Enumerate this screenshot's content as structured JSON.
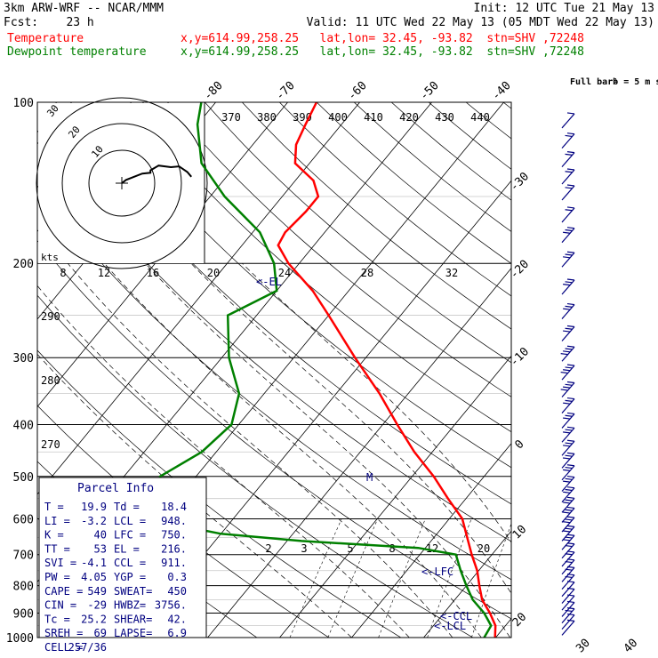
{
  "header": {
    "model": "3km ARW-WRF -- NCAR/MMM",
    "init": "Init: 12 UTC Tue 21 May 13",
    "fcst": "Fcst:    23 h",
    "valid": "Valid: 11 UTC Wed 22 May 13 (05 MDT Wed 22 May 13)",
    "temp_label": "Temperature",
    "temp_info": "x,y=614.99,258.25   lat,lon= 32.45, -93.82  stn=SHV ,72248",
    "dew_label": "Dewpoint temperature",
    "dew_info": "x,y=614.99,258.25   lat,lon= 32.45, -93.82  stn=SHV ,72248"
  },
  "colors": {
    "temperature": "#ff0000",
    "dewpoint": "#008000",
    "info": "#000080",
    "grid": "#000000"
  },
  "chart_data": {
    "type": "line",
    "title": "Skew-T log-P sounding",
    "pressure_levels": [
      100,
      200,
      300,
      400,
      500,
      600,
      700,
      800,
      900,
      1000
    ],
    "temperature_axis_ticks": [
      -80,
      -70,
      -60,
      -50,
      -40,
      -30,
      -20,
      -10,
      0,
      10,
      20,
      30,
      40
    ],
    "theta_ticks": [
      370,
      380,
      390,
      400,
      410,
      420,
      430,
      440
    ],
    "theta_e_ticks": [
      290,
      280,
      270
    ],
    "mixing_ratio_ticks_upper": [
      8,
      12,
      16,
      20,
      24,
      28,
      32
    ],
    "mixing_ratio_ticks_lower": [
      2,
      3,
      5,
      8,
      12,
      20
    ],
    "wind_barb_label": "Full barb = 5 m s",
    "wind_barb_exponent": "-1",
    "hodograph_label": "kts",
    "hodograph_rings": [
      "10",
      "20",
      "30"
    ],
    "series": [
      {
        "name": "Temperature",
        "points": [
          {
            "p": 1000,
            "t": 19.9
          },
          {
            "p": 950,
            "t": 18.6
          },
          {
            "p": 900,
            "t": 16.4
          },
          {
            "p": 850,
            "t": 13.8
          },
          {
            "p": 800,
            "t": 11.8
          },
          {
            "p": 750,
            "t": 9.8
          },
          {
            "p": 700,
            "t": 7.2
          },
          {
            "p": 650,
            "t": 4.6
          },
          {
            "p": 600,
            "t": 1.8
          },
          {
            "p": 550,
            "t": -2.5
          },
          {
            "p": 500,
            "t": -7.0
          },
          {
            "p": 450,
            "t": -12.5
          },
          {
            "p": 400,
            "t": -18.0
          },
          {
            "p": 350,
            "t": -24.0
          },
          {
            "p": 300,
            "t": -31.5
          },
          {
            "p": 250,
            "t": -40.0
          },
          {
            "p": 225,
            "t": -45.0
          },
          {
            "p": 200,
            "t": -51.5
          },
          {
            "p": 185,
            "t": -55.0
          },
          {
            "p": 175,
            "t": -55.5
          },
          {
            "p": 160,
            "t": -55.0
          },
          {
            "p": 150,
            "t": -55.0
          },
          {
            "p": 140,
            "t": -57.5
          },
          {
            "p": 130,
            "t": -62.0
          },
          {
            "p": 120,
            "t": -64.0
          },
          {
            "p": 110,
            "t": -65.0
          },
          {
            "p": 100,
            "t": -66.0
          }
        ]
      },
      {
        "name": "Dewpoint temperature",
        "points": [
          {
            "p": 1000,
            "t": 18.4
          },
          {
            "p": 950,
            "t": 18.0
          },
          {
            "p": 900,
            "t": 15.6
          },
          {
            "p": 850,
            "t": 12.5
          },
          {
            "p": 800,
            "t": 10.0
          },
          {
            "p": 750,
            "t": 7.5
          },
          {
            "p": 700,
            "t": 5.0
          },
          {
            "p": 680,
            "t": -1.0
          },
          {
            "p": 660,
            "t": -18.0
          },
          {
            "p": 640,
            "t": -30.0
          },
          {
            "p": 620,
            "t": -36.0
          },
          {
            "p": 600,
            "t": -39.5
          },
          {
            "p": 560,
            "t": -42.0
          },
          {
            "p": 500,
            "t": -45.0
          },
          {
            "p": 450,
            "t": -42.0
          },
          {
            "p": 400,
            "t": -41.0
          },
          {
            "p": 350,
            "t": -43.5
          },
          {
            "p": 300,
            "t": -49.0
          },
          {
            "p": 250,
            "t": -54.0
          },
          {
            "p": 225,
            "t": -50.0
          },
          {
            "p": 200,
            "t": -53.5
          },
          {
            "p": 175,
            "t": -59.0
          },
          {
            "p": 150,
            "t": -68.0
          },
          {
            "p": 130,
            "t": -75.0
          },
          {
            "p": 110,
            "t": -80.0
          },
          {
            "p": 100,
            "t": -82.0
          }
        ]
      }
    ],
    "level_markers": [
      {
        "label": "<-EL",
        "p": 216
      },
      {
        "label": "M",
        "p": 500
      },
      {
        "label": "<-LFC",
        "p": 750
      },
      {
        "label": "<-CCL",
        "p": 911
      },
      {
        "label": "<-LCL",
        "p": 948
      }
    ],
    "hodograph_trace": [
      [
        0,
        0
      ],
      [
        2,
        -4
      ],
      [
        6,
        -8
      ],
      [
        10,
        -12
      ],
      [
        14,
        -13
      ],
      [
        14,
        -16
      ],
      [
        18,
        -22
      ],
      [
        24,
        -20
      ],
      [
        28,
        -21
      ],
      [
        32,
        -14
      ],
      [
        34,
        -8
      ]
    ],
    "winds": [
      {
        "p": 975,
        "speed": 8,
        "dir": 170
      },
      {
        "p": 950,
        "speed": 10,
        "dir": 180
      },
      {
        "p": 925,
        "speed": 14,
        "dir": 190
      },
      {
        "p": 900,
        "speed": 12,
        "dir": 200
      },
      {
        "p": 875,
        "speed": 10,
        "dir": 210
      },
      {
        "p": 850,
        "speed": 10,
        "dir": 220
      },
      {
        "p": 825,
        "speed": 12,
        "dir": 230
      },
      {
        "p": 800,
        "speed": 14,
        "dir": 240
      },
      {
        "p": 775,
        "speed": 16,
        "dir": 245
      },
      {
        "p": 750,
        "speed": 18,
        "dir": 250
      },
      {
        "p": 725,
        "speed": 20,
        "dir": 250
      },
      {
        "p": 700,
        "speed": 22,
        "dir": 250
      },
      {
        "p": 675,
        "speed": 24,
        "dir": 255
      },
      {
        "p": 650,
        "speed": 26,
        "dir": 255
      },
      {
        "p": 625,
        "speed": 28,
        "dir": 255
      },
      {
        "p": 600,
        "speed": 28,
        "dir": 255
      },
      {
        "p": 575,
        "speed": 30,
        "dir": 255
      },
      {
        "p": 550,
        "speed": 30,
        "dir": 255
      },
      {
        "p": 525,
        "speed": 30,
        "dir": 255
      },
      {
        "p": 500,
        "speed": 30,
        "dir": 255
      },
      {
        "p": 475,
        "speed": 30,
        "dir": 255
      },
      {
        "p": 450,
        "speed": 30,
        "dir": 255
      },
      {
        "p": 425,
        "speed": 32,
        "dir": 255
      },
      {
        "p": 400,
        "speed": 32,
        "dir": 255
      },
      {
        "p": 375,
        "speed": 32,
        "dir": 255
      },
      {
        "p": 350,
        "speed": 34,
        "dir": 255
      },
      {
        "p": 325,
        "speed": 34,
        "dir": 255
      },
      {
        "p": 300,
        "speed": 34,
        "dir": 255
      },
      {
        "p": 275,
        "speed": 30,
        "dir": 255
      },
      {
        "p": 250,
        "speed": 30,
        "dir": 255
      },
      {
        "p": 225,
        "speed": 28,
        "dir": 255
      },
      {
        "p": 200,
        "speed": 26,
        "dir": 255
      },
      {
        "p": 180,
        "speed": 24,
        "dir": 255
      },
      {
        "p": 165,
        "speed": 22,
        "dir": 255
      },
      {
        "p": 150,
        "speed": 20,
        "dir": 255
      },
      {
        "p": 140,
        "speed": 18,
        "dir": 255
      },
      {
        "p": 130,
        "speed": 16,
        "dir": 255
      },
      {
        "p": 120,
        "speed": 14,
        "dir": 255
      },
      {
        "p": 110,
        "speed": 12,
        "dir": 255
      }
    ],
    "parcel_info": {
      "title": "Parcel Info",
      "rows": [
        [
          "T  =",
          "19.9",
          "Td =",
          "18.4"
        ],
        [
          "LI =",
          "-3.2",
          "LCL =",
          "948."
        ],
        [
          "K  =",
          "40",
          "LFC =",
          "750."
        ],
        [
          "TT =",
          "53",
          "EL  =",
          "216."
        ],
        [
          "SVI =",
          "-4.1",
          "CCL =",
          "911."
        ],
        [
          "PW =",
          "4.05",
          "YGP =",
          "0.3"
        ],
        [
          "CAPE =",
          "549",
          "SWEAT=",
          "450"
        ],
        [
          "CIN =",
          "-29",
          "HWBZ=",
          "3756."
        ],
        [
          "Tc =",
          "25.2",
          "SHEAR=",
          "42."
        ],
        [
          "SREH =",
          "69",
          "LAPSE=",
          "6.9"
        ],
        [
          "CELL =",
          "257/36",
          "",
          ""
        ]
      ]
    }
  }
}
